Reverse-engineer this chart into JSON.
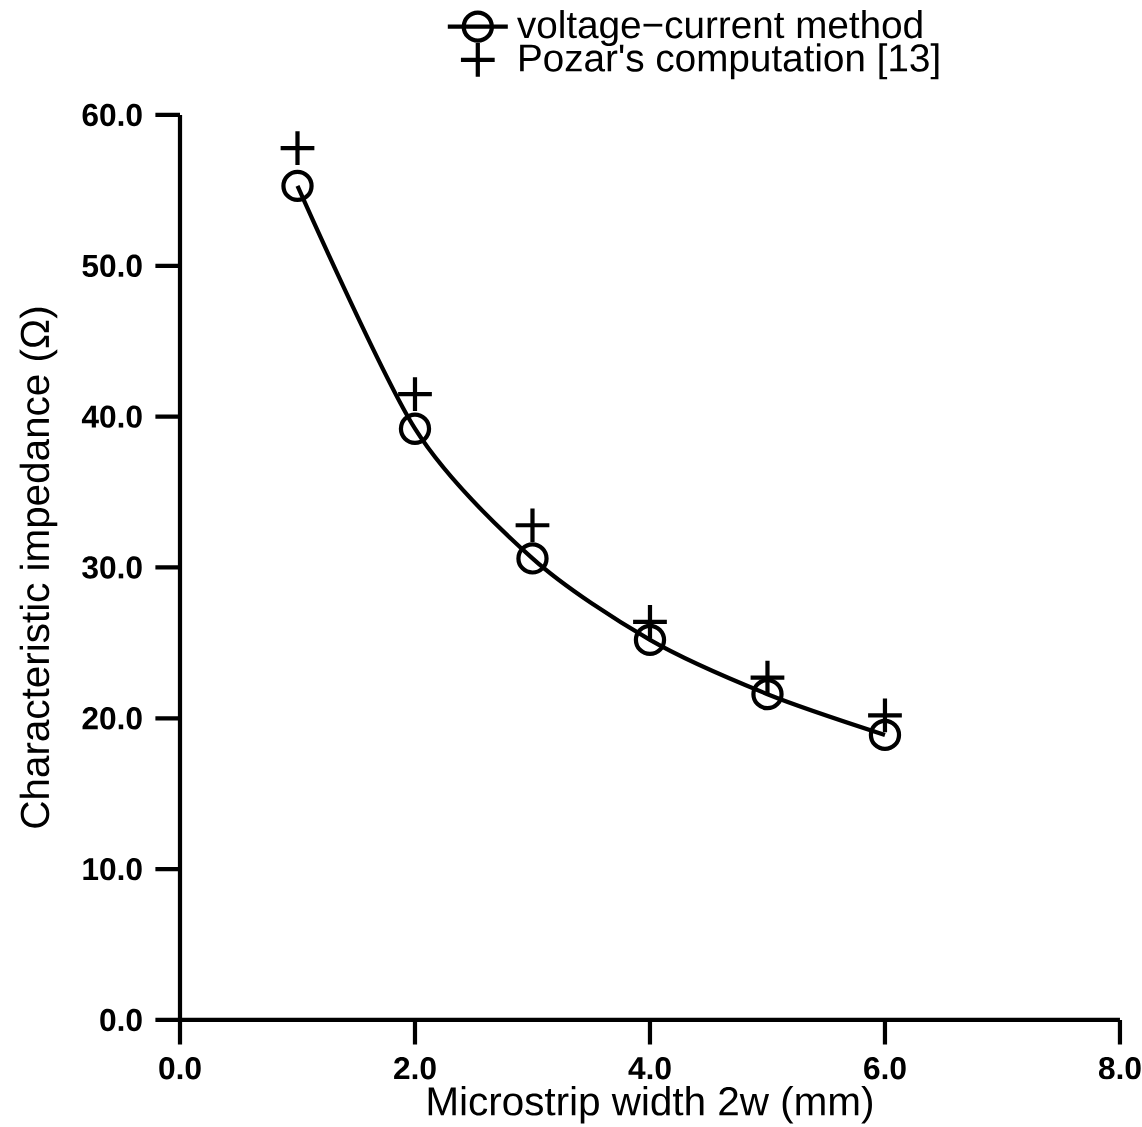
{
  "chart_data": {
    "type": "line",
    "xlabel": "Microstrip width 2w (mm)",
    "ylabel": "Characteristic impedance (Ω)",
    "x": [
      1,
      2,
      3,
      4,
      5,
      6
    ],
    "series": [
      {
        "name": "voltage−current method",
        "color": "#000000",
        "marker": "circle",
        "line_style": "solid",
        "values": [
          55.3,
          39.2,
          30.6,
          25.2,
          21.6,
          18.9
        ]
      },
      {
        "name": "Pozar's computation [13]",
        "color": "#000000",
        "type": "scatter",
        "marker": "cross",
        "values": [
          57.8,
          41.5,
          32.8,
          26.4,
          22.7,
          20.2
        ]
      }
    ],
    "xlim": [
      0,
      8
    ],
    "ylim": [
      0,
      60
    ],
    "xticks": [
      {
        "value": 0,
        "label": "0.0"
      },
      {
        "value": 2,
        "label": "2.0"
      },
      {
        "value": 4,
        "label": "4.0"
      },
      {
        "value": 6,
        "label": "6.0"
      },
      {
        "value": 8,
        "label": "8.0"
      }
    ],
    "yticks": [
      {
        "value": 0,
        "label": "0.0"
      },
      {
        "value": 10,
        "label": "10.0"
      },
      {
        "value": 20,
        "label": "20.0"
      },
      {
        "value": 30,
        "label": "30.0"
      },
      {
        "value": 40,
        "label": "40.0"
      },
      {
        "value": 50,
        "label": "50.0"
      },
      {
        "value": 60,
        "label": "60.0"
      }
    ],
    "grid": false,
    "legend": "top"
  }
}
